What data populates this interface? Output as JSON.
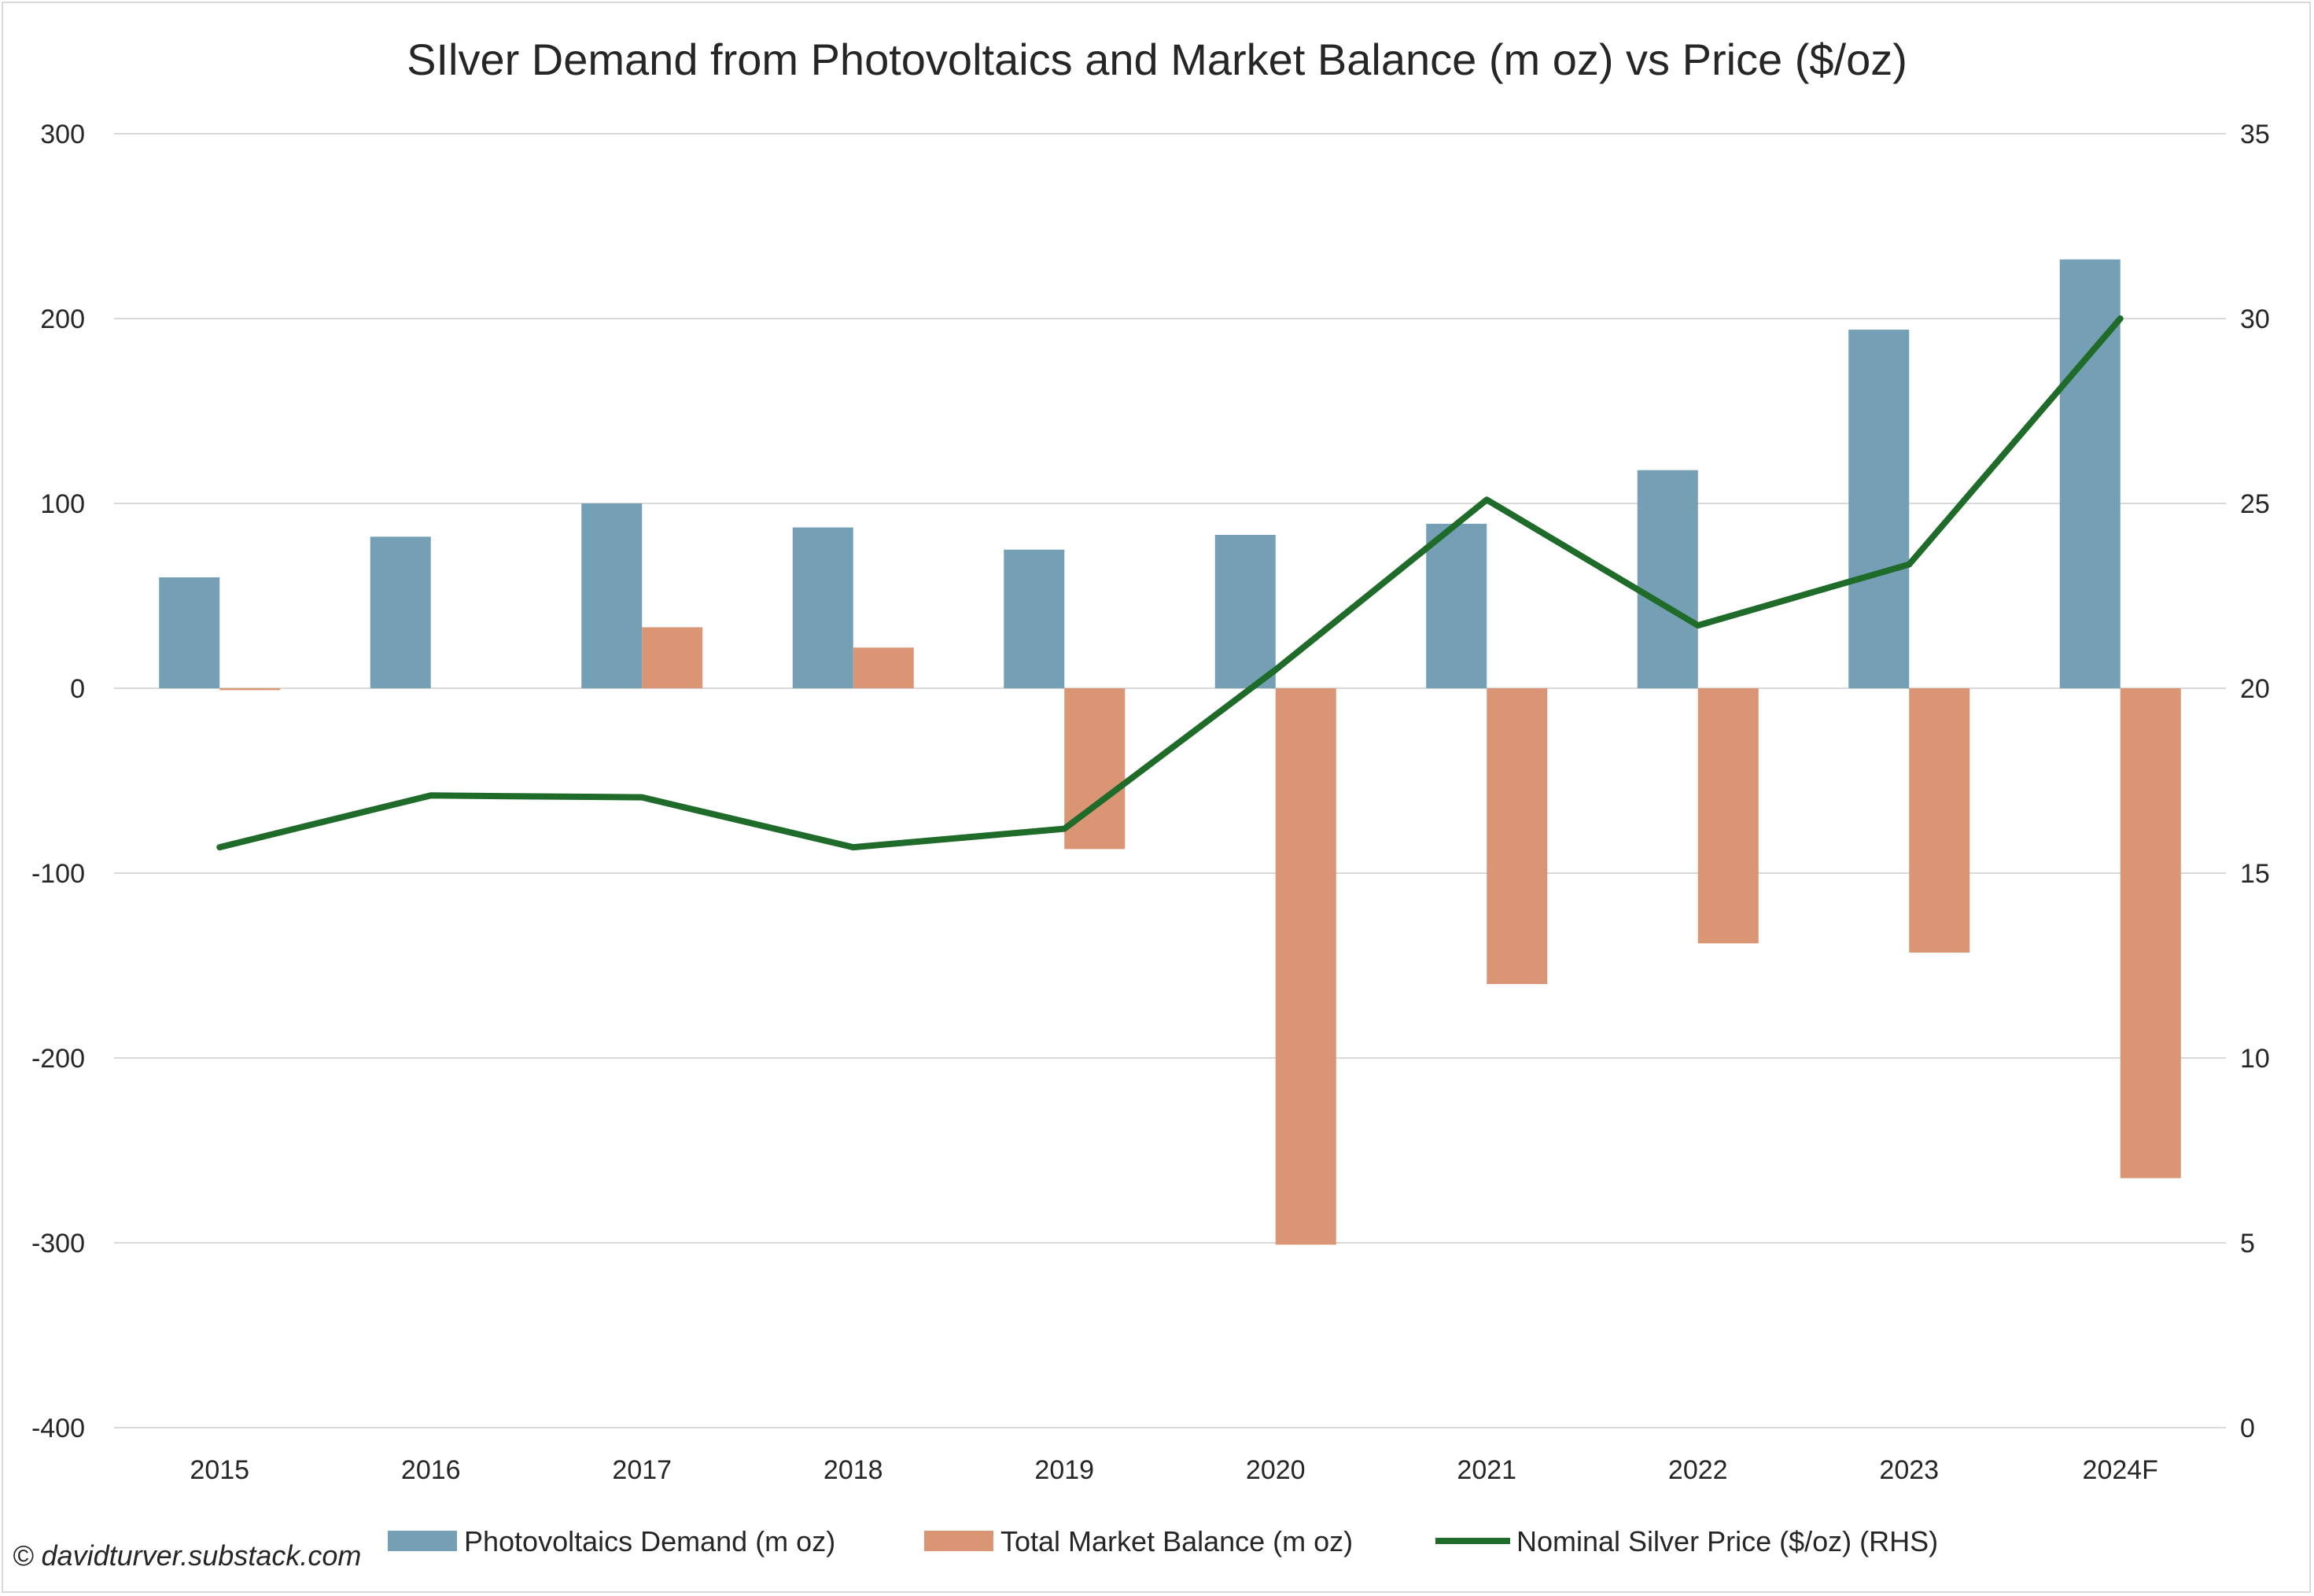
{
  "chart_data": {
    "type": "bar",
    "title": "SIlver Demand from Photovoltaics and Market Balance (m oz) vs Price ($/oz)",
    "categories": [
      "2015",
      "2016",
      "2017",
      "2018",
      "2019",
      "2020",
      "2021",
      "2022",
      "2023",
      "2024F"
    ],
    "y_left": {
      "min": -400,
      "max": 300,
      "step": 100,
      "ticks": [
        "300",
        "200",
        "100",
        "0",
        "-100",
        "-200",
        "-300",
        "-400"
      ]
    },
    "y_right": {
      "min": 0,
      "max": 35,
      "step": 5,
      "ticks": [
        "35",
        "30",
        "25",
        "20",
        "15",
        "10",
        "5",
        "0"
      ]
    },
    "grid": true,
    "legend_position": "bottom",
    "series": [
      {
        "name": "Photovoltaics Demand (m oz)",
        "type": "bar",
        "axis": "left",
        "color": "#759fb5",
        "values": [
          60,
          82,
          100,
          87,
          75,
          83,
          89,
          118,
          194,
          232
        ]
      },
      {
        "name": "Total Market Balance (m oz)",
        "type": "bar",
        "axis": "left",
        "color": "#d99574",
        "values": [
          -1,
          0,
          33,
          22,
          -87,
          -301,
          -160,
          -138,
          -143,
          -265
        ]
      },
      {
        "name": "Nominal Silver Price ($/oz) (RHS)",
        "type": "line",
        "axis": "right",
        "color": "#1f6b2a",
        "values": [
          15.7,
          17.1,
          17.05,
          15.7,
          16.2,
          20.5,
          25.1,
          21.7,
          23.35,
          30.0
        ]
      }
    ]
  },
  "credit": "© davidturver.substack.com"
}
